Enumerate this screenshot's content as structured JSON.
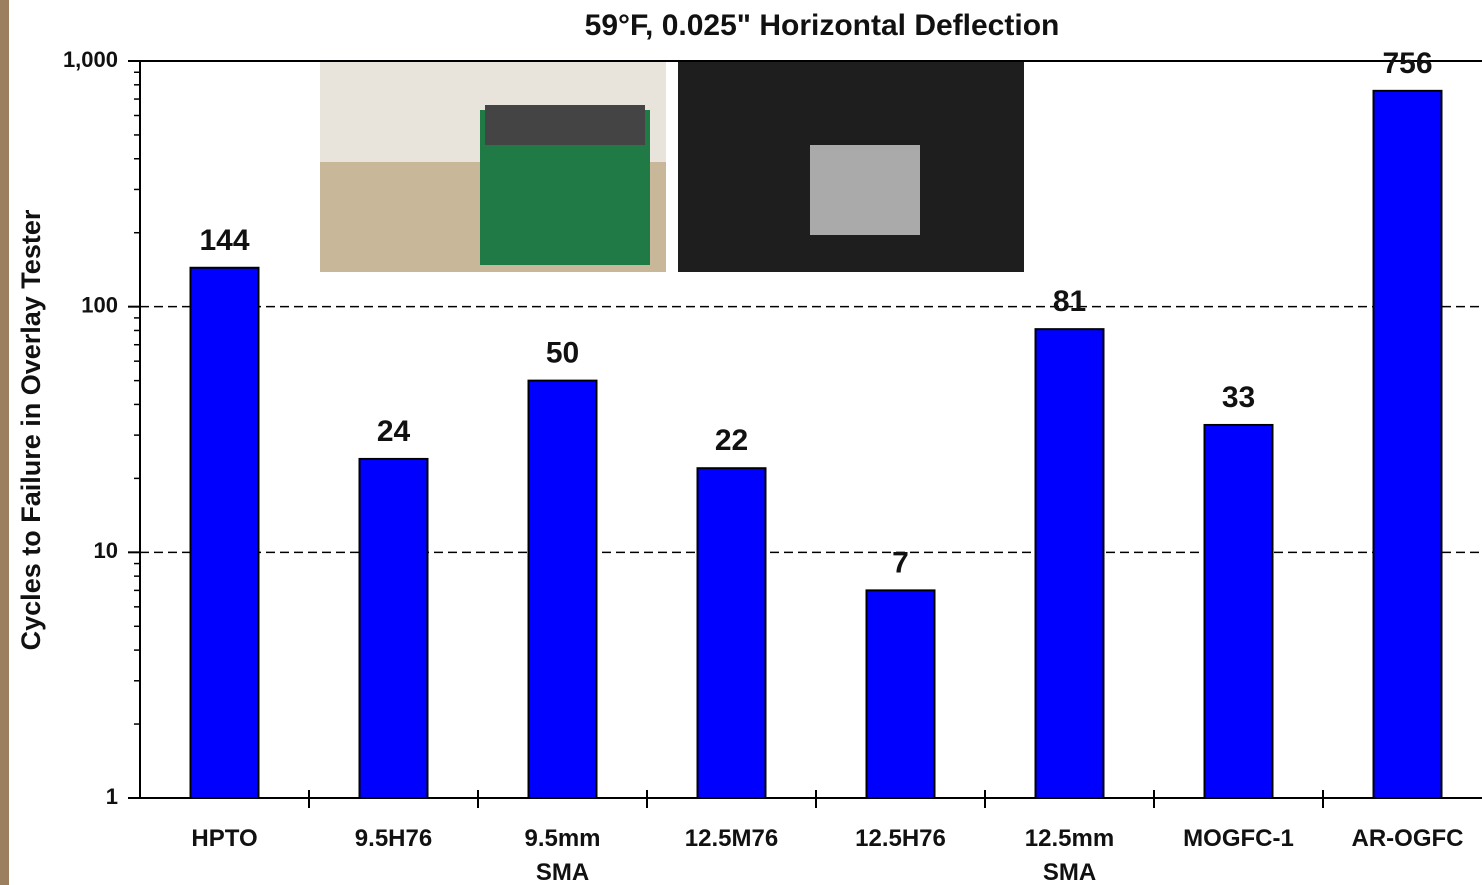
{
  "chart_data": {
    "type": "bar",
    "title": "59°F, 0.025\" Horizontal Deflection",
    "y_label": "Cycles to Failure in Overlay Tester",
    "categories": [
      "HPTO",
      "9.5H76",
      "9.5mm SMA",
      "12.5M76",
      "12.5H76",
      "12.5mm SMA",
      "MOGFC-1",
      "AR-OGFC"
    ],
    "values": [
      144,
      24,
      50,
      22,
      7,
      81,
      33,
      756
    ],
    "color": "#0000ff",
    "log_scale": true,
    "ylim": [
      1,
      1000
    ],
    "yticks": [
      1,
      10,
      100,
      {
        "value": 1000,
        "label": "1,000"
      }
    ],
    "grid": true
  }
}
